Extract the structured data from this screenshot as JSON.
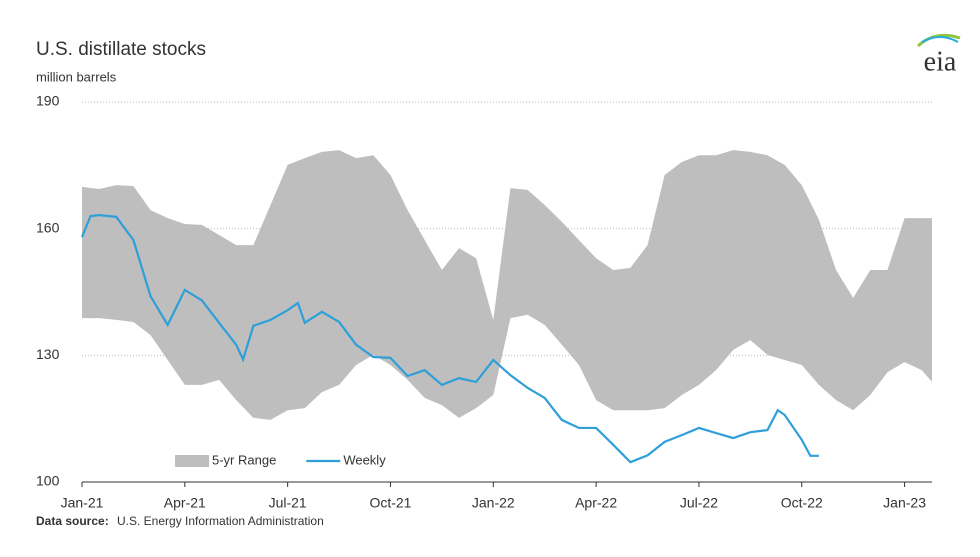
{
  "chart_data": {
    "type": "band-line",
    "title": "U.S. distillate stocks",
    "subtitle": "million barrels",
    "logo": "eia",
    "source_label": "Data source:",
    "source": "U.S. Energy Information Administration",
    "xlim": [
      0,
      24.8
    ],
    "xticks": [
      {
        "value": 0,
        "label": "Jan-21"
      },
      {
        "value": 3,
        "label": "Apr-21"
      },
      {
        "value": 6,
        "label": "Jul-21"
      },
      {
        "value": 9,
        "label": "Oct-21"
      },
      {
        "value": 12,
        "label": "Jan-22"
      },
      {
        "value": 15,
        "label": "Apr-22"
      },
      {
        "value": 18,
        "label": "Jul-22"
      },
      {
        "value": 21,
        "label": "Oct-22"
      },
      {
        "value": 24,
        "label": "Jan-23"
      }
    ],
    "ylim": [
      100,
      190
    ],
    "yticks": [
      100,
      130,
      160,
      190
    ],
    "grid": true,
    "legend": "bottom-left",
    "series": [
      {
        "name": "5-yr Range",
        "color": "#bebebe",
        "x": [
          0,
          0.5,
          1,
          1.5,
          2,
          2.5,
          3,
          3.5,
          4,
          4.5,
          5,
          5.5,
          6,
          6.5,
          7,
          7.5,
          8,
          8.5,
          9,
          9.5,
          10,
          10.5,
          11,
          11.5,
          12,
          12.5,
          13,
          13.5,
          14,
          14.5,
          15,
          15.5,
          16,
          16.5,
          17,
          17.5,
          18,
          18.5,
          19,
          19.5,
          20,
          20.5,
          21,
          21.5,
          22,
          22.5,
          23,
          23.5,
          24,
          24.5,
          24.8
        ],
        "upper": [
          169.9,
          169.4,
          170.3,
          170.1,
          164.4,
          162.5,
          161.1,
          160.9,
          158.5,
          156.1,
          156.1,
          165.6,
          175.1,
          176.7,
          178.2,
          178.6,
          176.7,
          177.4,
          172.7,
          164.4,
          157.3,
          150.2,
          155.4,
          153,
          138.4,
          169.6,
          169.2,
          165.6,
          161.6,
          157.3,
          153,
          150.2,
          150.7,
          156.1,
          172.7,
          175.8,
          177.4,
          177.4,
          178.6,
          178.2,
          177.4,
          175.1,
          170.3,
          162.1,
          150.2,
          143.6,
          150.2,
          150.2,
          162.5,
          162.5,
          162.5
        ],
        "lower": [
          138.8,
          138.8,
          138.4,
          137.9,
          134.8,
          128.9,
          123,
          123,
          124.2,
          119.4,
          115.2,
          114.7,
          117,
          117.5,
          121.3,
          123,
          127.7,
          130.1,
          127.7,
          124.2,
          119.9,
          118.2,
          115.2,
          117.5,
          120.6,
          138.8,
          139.6,
          137.2,
          132.5,
          127.7,
          119.4,
          117,
          117,
          117,
          117.5,
          120.6,
          123,
          126.5,
          131.3,
          133.6,
          130.1,
          128.9,
          127.7,
          123,
          119.4,
          117,
          120.6,
          126,
          128.4,
          126.5,
          123.7
        ]
      },
      {
        "name": "Weekly",
        "color": "#2e9fd9",
        "x": [
          0,
          0.25,
          0.5,
          1,
          1.5,
          2,
          2.5,
          3,
          3.5,
          4,
          4.5,
          4.7,
          5,
          5.5,
          6,
          6.3,
          6.5,
          7,
          7.5,
          8,
          8.5,
          9,
          9.5,
          10,
          10.5,
          11,
          11.5,
          12,
          12.5,
          13,
          13.5,
          14,
          14.5,
          15,
          15.5,
          16,
          16.5,
          17,
          17.5,
          18,
          18.5,
          19,
          19.5,
          20,
          20.3,
          20.5,
          21,
          21.25,
          21.5
        ],
        "values": [
          158,
          163,
          163.2,
          162.8,
          157.3,
          144,
          137.2,
          145.5,
          143,
          137.7,
          132.5,
          129,
          137,
          138.4,
          140.7,
          142.4,
          137.7,
          140.3,
          137.9,
          132.5,
          129.6,
          129.4,
          125.1,
          126.5,
          123,
          124.6,
          123.7,
          128.9,
          125.3,
          122.3,
          119.9,
          114.7,
          112.8,
          112.8,
          108.8,
          104.7,
          106.3,
          109.5,
          111.1,
          112.8,
          111.6,
          110.4,
          111.8,
          112.3,
          117,
          115.9,
          110,
          106.2,
          106.2
        ]
      }
    ]
  }
}
